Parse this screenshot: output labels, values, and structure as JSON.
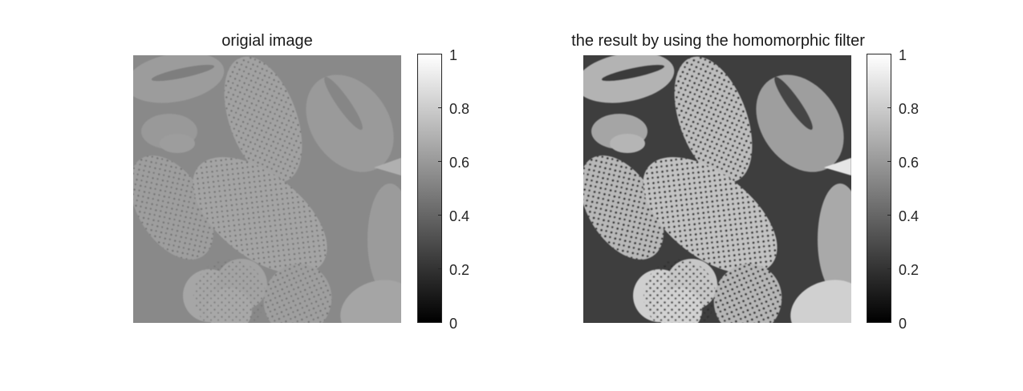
{
  "panels": [
    {
      "id": "original",
      "title": "origial image",
      "colorbar": {
        "min": 0,
        "max": 1,
        "ticks": [
          "0",
          "0.2",
          "0.4",
          "0.6",
          "0.8",
          "1"
        ],
        "colormap": "gray"
      },
      "image": {
        "description_style": "low-contrast grayscale micrograph of pollen grains",
        "background_gray": "#8a8a8a"
      }
    },
    {
      "id": "filtered",
      "title": "the result by using the homomorphic filter",
      "colorbar": {
        "min": 0,
        "max": 1,
        "ticks": [
          "0",
          "0.2",
          "0.4",
          "0.6",
          "0.8",
          "1"
        ],
        "colormap": "gray"
      },
      "image": {
        "description_style": "high-contrast grayscale micrograph of pollen grains",
        "background_gray": "#3e3e3e"
      }
    }
  ]
}
